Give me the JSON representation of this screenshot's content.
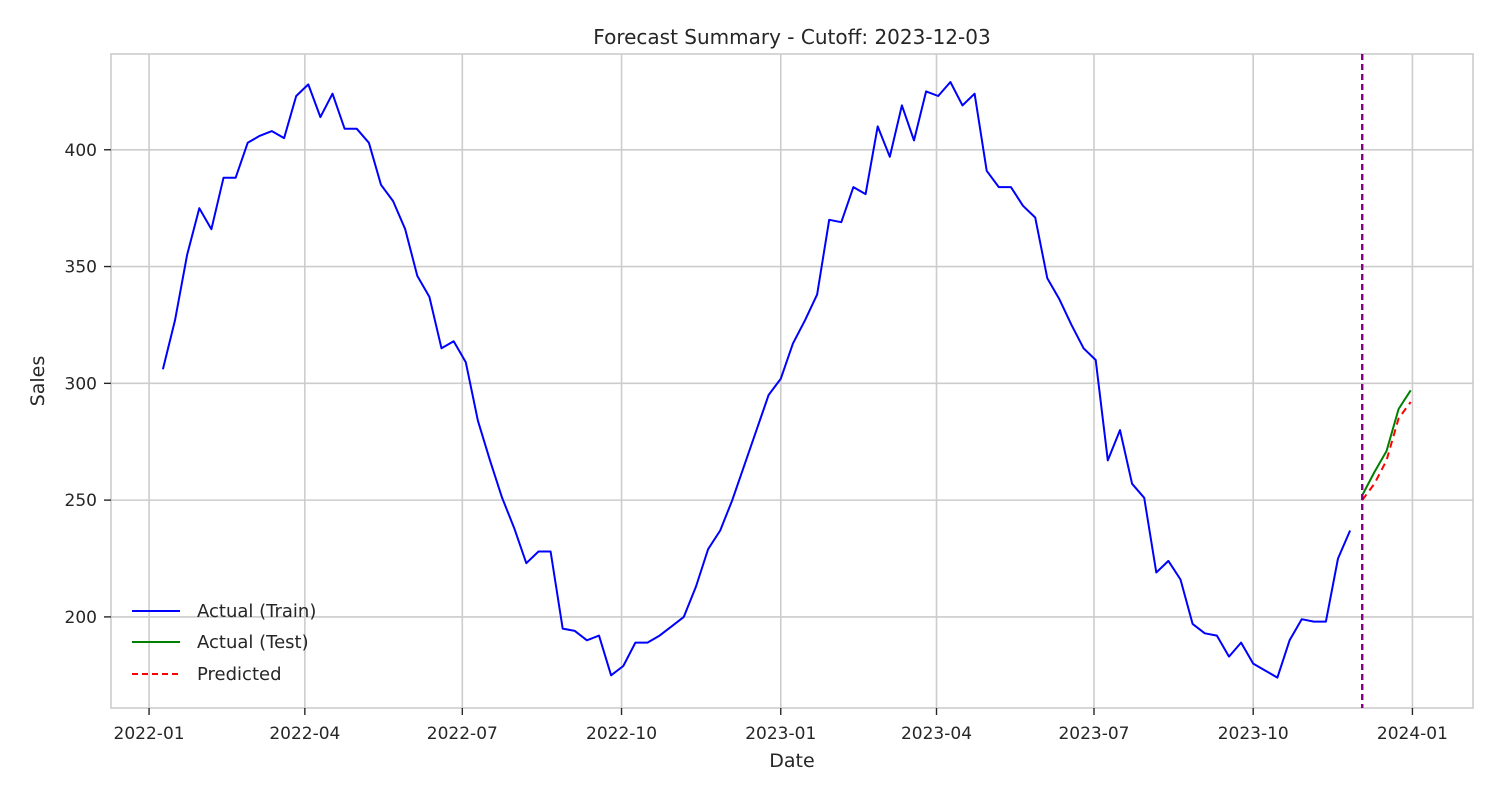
{
  "chart_data": {
    "type": "line",
    "title": "Forecast Summary - Cutoff: 2023-12-03",
    "xlabel": "Date",
    "ylabel": "Sales",
    "xlim": [
      "2021-12-10",
      "2024-02-05"
    ],
    "ylim": [
      161,
      441
    ],
    "x_ticks": [
      "2022-01",
      "2022-04",
      "2022-07",
      "2022-10",
      "2023-01",
      "2023-04",
      "2023-07",
      "2023-10",
      "2024-01"
    ],
    "x_tick_dates": [
      "2022-01-01",
      "2022-04-01",
      "2022-07-01",
      "2022-10-01",
      "2023-01-01",
      "2023-04-01",
      "2023-07-01",
      "2023-10-01",
      "2024-01-01"
    ],
    "y_ticks": [
      200,
      250,
      300,
      350,
      400
    ],
    "grid": true,
    "legend_position": "lower-left",
    "cutoff": "2023-12-03",
    "cutoff_color": "#800080",
    "series": [
      {
        "name": "Actual (Train)",
        "color": "#0000ff",
        "style": "solid",
        "x": [
          "2022-01-09",
          "2022-01-16",
          "2022-01-23",
          "2022-01-30",
          "2022-02-06",
          "2022-02-13",
          "2022-02-20",
          "2022-02-27",
          "2022-03-06",
          "2022-03-13",
          "2022-03-20",
          "2022-03-27",
          "2022-04-03",
          "2022-04-10",
          "2022-04-17",
          "2022-04-24",
          "2022-05-01",
          "2022-05-08",
          "2022-05-15",
          "2022-05-22",
          "2022-05-29",
          "2022-06-05",
          "2022-06-12",
          "2022-06-19",
          "2022-06-26",
          "2022-07-03",
          "2022-07-10",
          "2022-07-17",
          "2022-07-24",
          "2022-07-31",
          "2022-08-07",
          "2022-08-14",
          "2022-08-21",
          "2022-08-28",
          "2022-09-04",
          "2022-09-11",
          "2022-09-18",
          "2022-09-25",
          "2022-10-02",
          "2022-10-09",
          "2022-10-16",
          "2022-10-23",
          "2022-10-30",
          "2022-11-06",
          "2022-11-13",
          "2022-11-20",
          "2022-11-27",
          "2022-12-04",
          "2022-12-11",
          "2022-12-18",
          "2022-12-25",
          "2023-01-01",
          "2023-01-08",
          "2023-01-15",
          "2023-01-22",
          "2023-01-29",
          "2023-02-05",
          "2023-02-12",
          "2023-02-19",
          "2023-02-26",
          "2023-03-05",
          "2023-03-12",
          "2023-03-19",
          "2023-03-26",
          "2023-04-02",
          "2023-04-09",
          "2023-04-16",
          "2023-04-23",
          "2023-04-30",
          "2023-05-07",
          "2023-05-14",
          "2023-05-21",
          "2023-05-28",
          "2023-06-04",
          "2023-06-11",
          "2023-06-18",
          "2023-06-25",
          "2023-07-02",
          "2023-07-09",
          "2023-07-16",
          "2023-07-23",
          "2023-07-30",
          "2023-08-06",
          "2023-08-13",
          "2023-08-20",
          "2023-08-27",
          "2023-09-03",
          "2023-09-10",
          "2023-09-17",
          "2023-09-24",
          "2023-10-01",
          "2023-10-08",
          "2023-10-15",
          "2023-10-22",
          "2023-10-29",
          "2023-11-05",
          "2023-11-12",
          "2023-11-19",
          "2023-11-26"
        ],
        "values": [
          306,
          327,
          355,
          375,
          366,
          388,
          388,
          403,
          406,
          408,
          405,
          423,
          428,
          414,
          424,
          409,
          409,
          403,
          385,
          378,
          366,
          346,
          337,
          315,
          318,
          309,
          284,
          267,
          251,
          238,
          223,
          228,
          228,
          195,
          194,
          190,
          192,
          175,
          179,
          189,
          189,
          192,
          196,
          200,
          213,
          229,
          237,
          250,
          265,
          280,
          295,
          302,
          317,
          327,
          338,
          370,
          369,
          384,
          381,
          410,
          397,
          419,
          404,
          425,
          423,
          429,
          419,
          424,
          391,
          384,
          384,
          376,
          371,
          345,
          336,
          325,
          315,
          310,
          267,
          280,
          257,
          251,
          219,
          224,
          216,
          197,
          193,
          192,
          183,
          189,
          180,
          177,
          174,
          190,
          199,
          198,
          198,
          225,
          237
        ]
      },
      {
        "name": "Actual (Test)",
        "color": "#008000",
        "style": "solid",
        "x": [
          "2023-12-03",
          "2023-12-10",
          "2023-12-17",
          "2023-12-24",
          "2023-12-31"
        ],
        "values": [
          252,
          262,
          271,
          289,
          297
        ]
      },
      {
        "name": "Predicted",
        "color": "#ff0000",
        "style": "dashed",
        "x": [
          "2023-12-03",
          "2023-12-10",
          "2023-12-17",
          "2023-12-24",
          "2023-12-31"
        ],
        "values": [
          250,
          257,
          267,
          285,
          292
        ]
      }
    ]
  }
}
